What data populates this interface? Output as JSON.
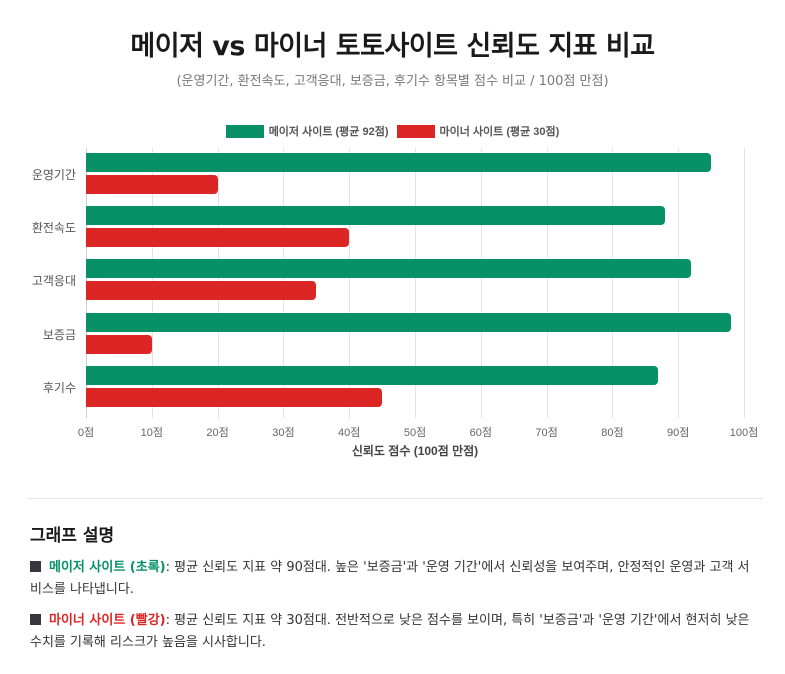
{
  "header": {
    "title": "메이저 vs 마이너 토토사이트 신뢰도 지표 비교",
    "subtitle": "(운영기간, 환전속도, 고객응대, 보증금, 후기수 항목별 점수 비교 / 100점 만점)"
  },
  "legend": {
    "major": "메이저 사이트 (평균 92점)",
    "minor": "마이너 사이트 (평균 30점)"
  },
  "colors": {
    "major": "#089167",
    "minor": "#dc2626"
  },
  "chart_data": {
    "type": "bar",
    "orientation": "horizontal",
    "title": "메이저 vs 마이너 토토사이트 신뢰도 지표 비교",
    "subtitle": "(운영기간, 환전속도, 고객응대, 보증금, 후기수 항목별 점수 비교 / 100점 만점)",
    "categories": [
      "운영기간",
      "환전속도",
      "고객응대",
      "보증금",
      "후기수"
    ],
    "series": [
      {
        "name": "메이저 사이트 (평균 92점)",
        "color": "#089167",
        "values": [
          95,
          88,
          92,
          98,
          87
        ]
      },
      {
        "name": "마이너 사이트 (평균 30점)",
        "color": "#dc2626",
        "values": [
          20,
          40,
          35,
          10,
          45
        ]
      }
    ],
    "xlabel": "신뢰도 점수 (100점 만점)",
    "ylabel": "",
    "xlim": [
      0,
      100
    ],
    "xticks": [
      "0점",
      "10점",
      "20점",
      "30점",
      "40점",
      "50점",
      "60점",
      "70점",
      "80점",
      "90점",
      "100점"
    ],
    "grid": true,
    "legend_position": "top"
  },
  "description": {
    "title": "그래프 설명",
    "major": {
      "label": "메이저 사이트 (초록)",
      "text": ": 평균 신뢰도 지표 약 90점대. 높은 '보증금'과 '운영 기간'에서 신뢰성을 보여주며, 안정적인 운영과 고객 서비스를 나타냅니다."
    },
    "minor": {
      "label": "마이너 사이트 (빨강)",
      "text": ": 평균 신뢰도 지표 약 30점대. 전반적으로 낮은 점수를 보이며, 특히 '보증금'과 '운영 기간'에서 현저히 낮은 수치를 기록해 리스크가 높음을 시사합니다."
    }
  }
}
